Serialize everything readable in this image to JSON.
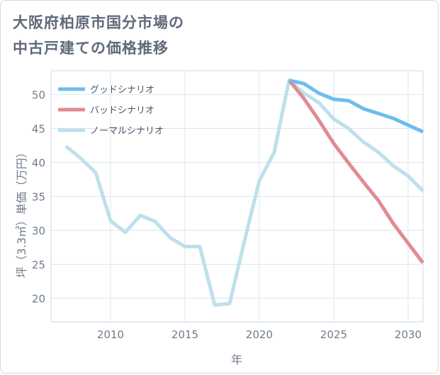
{
  "title": {
    "line1": "大阪府柏原市国分市場の",
    "line2": "中古戸建ての価格推移"
  },
  "colors": {
    "good": "#6dbdee",
    "bad": "#e08b91",
    "normal": "#bde0ec",
    "grid": "#dbe6ef",
    "text": "#6f7c8a"
  },
  "chart_data": {
    "type": "line",
    "xlabel": "年",
    "ylabel": "坪（3.3㎡）単価（万円）",
    "xlim": [
      2006,
      2031
    ],
    "ylim": [
      16.5,
      53.5
    ],
    "xticks": [
      2010,
      2015,
      2020,
      2025,
      2030
    ],
    "yticks": [
      20,
      25,
      30,
      35,
      40,
      45,
      50
    ],
    "legend_position": "top-left",
    "series": [
      {
        "name": "グッドシナリオ",
        "key": "good",
        "x": [
          2022,
          2023,
          2024,
          2025,
          2026,
          2027,
          2028,
          2029,
          2030,
          2031
        ],
        "y": [
          52.1,
          51.6,
          50.2,
          49.3,
          49.1,
          47.9,
          47.2,
          46.5,
          45.5,
          44.5
        ]
      },
      {
        "name": "バッドシナリオ",
        "key": "bad",
        "x": [
          2022,
          2023,
          2024,
          2025,
          2026,
          2027,
          2028,
          2029,
          2030,
          2031
        ],
        "y": [
          52.1,
          49.4,
          46.2,
          42.8,
          39.9,
          37.1,
          34.4,
          31.0,
          28.1,
          25.2
        ]
      },
      {
        "name": "ノーマルシナリオ",
        "key": "normal",
        "x": [
          2007,
          2008,
          2009,
          2010,
          2011,
          2012,
          2013,
          2014,
          2015,
          2016,
          2017,
          2018,
          2019,
          2020,
          2021,
          2022,
          2023,
          2024,
          2025,
          2026,
          2027,
          2028,
          2029,
          2030,
          2031
        ],
        "y": [
          42.4,
          40.6,
          38.5,
          31.4,
          29.7,
          32.2,
          31.3,
          28.9,
          27.6,
          27.6,
          19.0,
          19.2,
          28.4,
          37.3,
          41.5,
          52.1,
          50.2,
          48.8,
          46.4,
          45.0,
          43.0,
          41.5,
          39.5,
          38.0,
          35.8
        ]
      }
    ]
  }
}
